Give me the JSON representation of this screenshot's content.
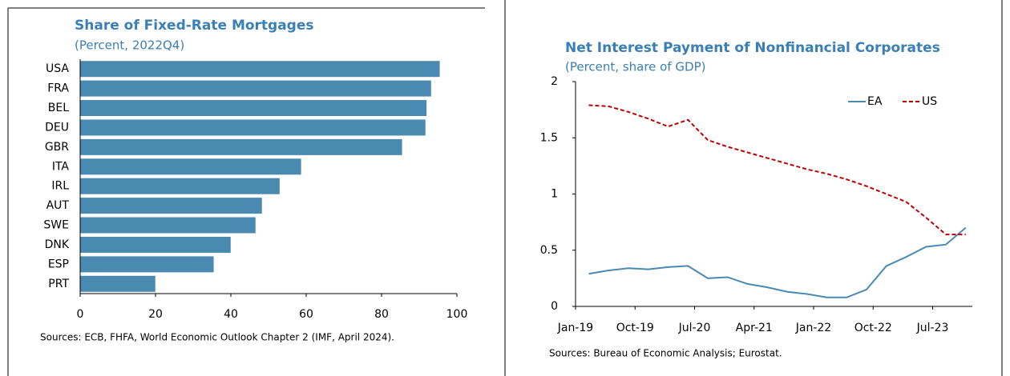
{
  "chart_data": [
    {
      "type": "barh",
      "title": "Share of Fixed-Rate Mortgages",
      "subtitle": "(Percent, 2022Q4)",
      "categories": [
        "USA",
        "FRA",
        "BEL",
        "DEU",
        "GBR",
        "ITA",
        "IRL",
        "AUT",
        "SWE",
        "DNK",
        "ESP",
        "PRT"
      ],
      "values": [
        95.5,
        93.2,
        92,
        91.7,
        85.5,
        58.7,
        53,
        48.3,
        46.6,
        40,
        35.5,
        20
      ],
      "color": "#4a8ab0",
      "xlim": [
        0,
        100
      ],
      "xticks": [
        0,
        20,
        40,
        60,
        80,
        100
      ],
      "sources": "Sources: ECB, FHFA, World Economic Outlook Chapter 2 (IMF, April 2024)."
    },
    {
      "type": "line",
      "title": "Net Interest Payment of Nonfinancial Corporates",
      "subtitle": "(Percent, share of GDP)",
      "x": [
        "2019-03",
        "2019-06",
        "2019-09",
        "2019-12",
        "2020-03",
        "2020-06",
        "2020-09",
        "2020-12",
        "2021-03",
        "2021-06",
        "2021-09",
        "2021-12",
        "2022-03",
        "2022-06",
        "2022-09",
        "2022-12",
        "2023-03",
        "2023-06",
        "2023-09",
        "2023-12"
      ],
      "series": [
        {
          "name": "EA",
          "color": "#4a8ab0",
          "dashed": false,
          "values": [
            0.29,
            0.32,
            0.34,
            0.33,
            0.35,
            0.36,
            0.25,
            0.26,
            0.2,
            0.17,
            0.13,
            0.11,
            0.08,
            0.08,
            0.15,
            0.36,
            0.44,
            0.53,
            0.55,
            0.7
          ]
        },
        {
          "name": "US",
          "color": "#c00000",
          "dashed": true,
          "values": [
            1.79,
            1.78,
            1.73,
            1.67,
            1.6,
            1.66,
            1.48,
            1.42,
            1.37,
            1.32,
            1.27,
            1.22,
            1.18,
            1.13,
            1.07,
            1.0,
            0.93,
            0.79,
            0.64,
            0.64
          ]
        }
      ],
      "xlim": [
        "2019-01",
        "2024-01"
      ],
      "xticks": [
        {
          "value": "2019-01",
          "label": "Jan-19"
        },
        {
          "value": "2019-10",
          "label": "Oct-19"
        },
        {
          "value": "2020-07",
          "label": "Jul-20"
        },
        {
          "value": "2021-04",
          "label": "Apr-21"
        },
        {
          "value": "2022-01",
          "label": "Jan-22"
        },
        {
          "value": "2022-10",
          "label": "Oct-22"
        },
        {
          "value": "2023-07",
          "label": "Jul-23"
        }
      ],
      "ylim": [
        0,
        2
      ],
      "yticks": [
        0,
        0.5,
        1,
        1.5,
        2
      ],
      "legend": "upper right",
      "sources": "Sources: Bureau of Economic Analysis; Eurostat."
    }
  ]
}
